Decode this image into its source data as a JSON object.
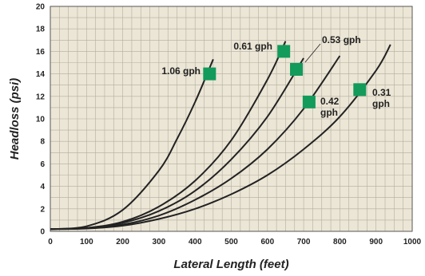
{
  "chart_data": {
    "type": "line",
    "title": "",
    "xlabel": "Lateral Length (feet)",
    "ylabel": "Headloss (psi)",
    "xlim": [
      0,
      1000
    ],
    "ylim": [
      0,
      20
    ],
    "xticks": [
      0,
      100,
      200,
      300,
      400,
      500,
      600,
      700,
      800,
      900,
      1000
    ],
    "yticks": [
      0,
      2,
      4,
      6,
      8,
      10,
      12,
      14,
      16,
      18,
      20
    ],
    "grid": true,
    "colors": {
      "plot_background": "#ece6d6",
      "grid": "#b3ad9f",
      "curve": "#222222",
      "marker": "#129b5b"
    },
    "series": [
      {
        "name": "1.06 gph",
        "label_lines": [
          "1.06 gph"
        ],
        "x": [
          0,
          100,
          200,
          300,
          350,
          400,
          450
        ],
        "y": [
          0.2,
          0.45,
          1.9,
          5.4,
          8.2,
          11.5,
          15.3
        ],
        "marker": [
          440,
          14
        ]
      },
      {
        "name": "0.61 gph",
        "label_lines": [
          "0.61 gph"
        ],
        "x": [
          0,
          100,
          200,
          300,
          400,
          500,
          600,
          650
        ],
        "y": [
          0.2,
          0.3,
          0.85,
          2.2,
          4.5,
          8.1,
          13.5,
          16.9
        ],
        "marker": [
          645,
          16
        ]
      },
      {
        "name": "0.53 gph",
        "label_lines": [
          "0.53 gph"
        ],
        "x": [
          0,
          100,
          200,
          300,
          400,
          500,
          600,
          700
        ],
        "y": [
          0.2,
          0.3,
          0.75,
          1.8,
          3.6,
          6.4,
          10.2,
          15.4
        ],
        "marker": [
          680,
          14.4
        ]
      },
      {
        "name": "0.42 gph",
        "label_lines": [
          "0.42",
          "gph"
        ],
        "x": [
          0,
          100,
          200,
          300,
          400,
          500,
          600,
          700,
          800
        ],
        "y": [
          0.2,
          0.27,
          0.6,
          1.4,
          2.8,
          4.7,
          7.3,
          10.9,
          15.6
        ],
        "marker": [
          715,
          11.5
        ]
      },
      {
        "name": "0.31 gph",
        "label_lines": [
          "0.31",
          "gph"
        ],
        "x": [
          0,
          100,
          200,
          300,
          400,
          500,
          600,
          700,
          800,
          900,
          940
        ],
        "y": [
          0.2,
          0.25,
          0.5,
          1.1,
          2.0,
          3.3,
          5.0,
          7.3,
          10.2,
          14.3,
          16.6
        ],
        "marker": [
          855,
          12.6
        ]
      }
    ]
  }
}
